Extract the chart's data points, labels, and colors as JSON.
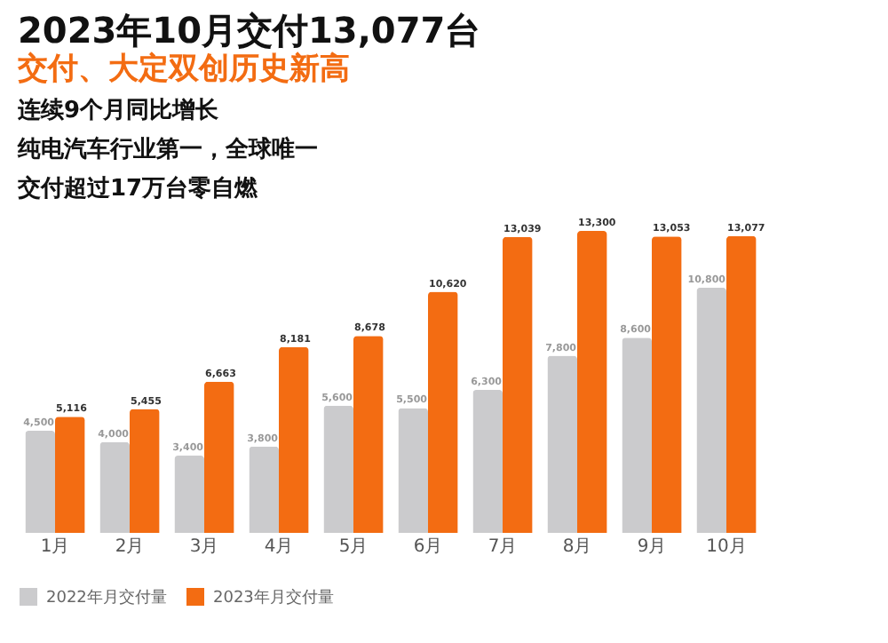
{
  "chart_data": {
    "type": "bar",
    "title": "2023年10月交付13,077台",
    "subtitle": "交付、大定双创历史新高",
    "annotations": [
      "连续9个月同比增长",
      "纯电汽车行业第一，全球唯一",
      "交付超过17万台零自燃"
    ],
    "categories": [
      "1月",
      "2月",
      "3月",
      "4月",
      "5月",
      "6月",
      "7月",
      "8月",
      "9月",
      "10月"
    ],
    "series": [
      {
        "name": "2022年月交付量",
        "color": "#cbcbcd",
        "values": [
          4500,
          4000,
          3400,
          3800,
          5600,
          5500,
          6300,
          7800,
          8600,
          10800
        ],
        "value_labels": [
          "4,500",
          "4,000",
          "3,400",
          "3,800",
          "5,600",
          "5,500",
          "6,300",
          "7,800",
          "8,600",
          "10,800"
        ]
      },
      {
        "name": "2023年月交付量",
        "color": "#f36c12",
        "values": [
          5116,
          5455,
          6663,
          8181,
          8678,
          10620,
          13039,
          13300,
          13053,
          13077
        ],
        "value_labels": [
          "5,116",
          "5,455",
          "6,663",
          "8,181",
          "8,678",
          "10,620",
          "13,039",
          "13,300",
          "13,053",
          "13,077"
        ]
      }
    ],
    "legend": "bottom",
    "grid": false
  }
}
